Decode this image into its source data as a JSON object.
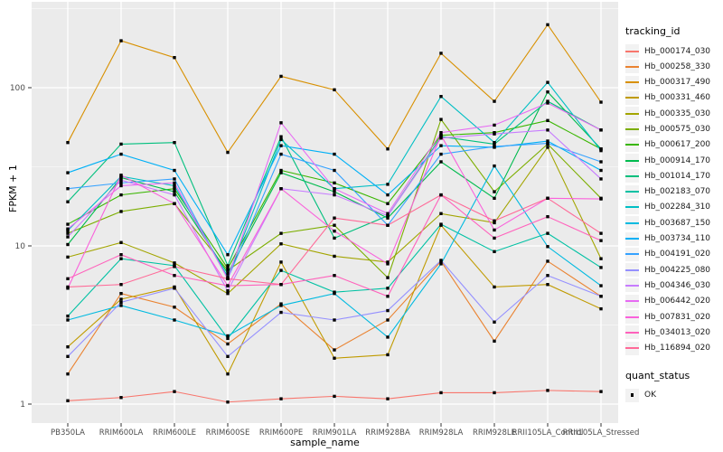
{
  "figure": {
    "panel_background": "#EBEBEB",
    "gridline_color": "#FFFFFF",
    "tick_color": "#333333",
    "tick_label_color": "#4D4D4D",
    "point_color": "#000000",
    "point_shape": "square"
  },
  "chart_data": {
    "type": "line",
    "title": "",
    "xlabel": "sample_name",
    "ylabel": "FPKM + 1",
    "y_scale": "log10",
    "y_ticks": [
      1,
      10,
      100
    ],
    "y_tick_labels": [
      "1",
      "10",
      "100"
    ],
    "y_minor_ticks": [
      3.1623,
      31.623,
      316.23
    ],
    "ylim": [
      1,
      350
    ],
    "grid": true,
    "legend_position": "right",
    "legend_title": "tracking_id",
    "categories": [
      "PB350LA",
      "RRIM600LA",
      "RRIM600LE",
      "RRIM600SE",
      "RRIM600PE",
      "RRIM901LA",
      "RRIM928BA",
      "RRIM928LA",
      "RRIM928LE",
      "RRII105LA_Control",
      "RRII105LA_Stressed"
    ],
    "series": [
      {
        "name": "Hb_000174_030",
        "color": "#F8766D",
        "values": [
          1.05,
          1.1,
          1.2,
          1.03,
          1.08,
          1.12,
          1.08,
          1.18,
          1.18,
          1.22,
          1.2
        ]
      },
      {
        "name": "Hb_000258_330",
        "color": "#EA8331",
        "values": [
          1.55,
          5.0,
          4.1,
          2.4,
          4.3,
          2.2,
          3.4,
          8.0,
          2.5,
          8.0,
          4.8
        ]
      },
      {
        "name": "Hb_000317_490",
        "color": "#D89000",
        "values": [
          45,
          198,
          155,
          39,
          118,
          97,
          41,
          165,
          82,
          250,
          81
        ]
      },
      {
        "name": "Hb_000331_460",
        "color": "#C09B00",
        "values": [
          2.3,
          4.6,
          5.5,
          1.55,
          7.9,
          1.95,
          2.05,
          13.5,
          5.5,
          5.7,
          4.0
        ]
      },
      {
        "name": "Hb_000335_030",
        "color": "#A3A500",
        "values": [
          8.5,
          10.5,
          7.8,
          5.0,
          10.3,
          8.6,
          7.9,
          16,
          14,
          42,
          8.3
        ]
      },
      {
        "name": "Hb_000575_030",
        "color": "#7CAE00",
        "values": [
          12,
          16.5,
          18.5,
          7.0,
          12,
          13.5,
          6.3,
          63,
          22,
          44,
          20
        ]
      },
      {
        "name": "Hb_000617_200",
        "color": "#39B600",
        "values": [
          13.7,
          21,
          23,
          7.2,
          30,
          25,
          18.5,
          50,
          52,
          62,
          41
        ]
      },
      {
        "name": "Hb_000914_170",
        "color": "#00BB4E",
        "values": [
          10.2,
          27,
          22,
          6.7,
          29,
          22,
          15,
          34,
          20,
          94,
          41
        ]
      },
      {
        "name": "Hb_001014_170",
        "color": "#00BF7D",
        "values": [
          19,
          44,
          45,
          7.5,
          49,
          11.2,
          15.5,
          49,
          44,
          82,
          54
        ]
      },
      {
        "name": "Hb_002183_070",
        "color": "#00C1A3",
        "values": [
          3.6,
          8.3,
          7.5,
          2.6,
          7.0,
          5.1,
          5.4,
          13.7,
          9.2,
          12,
          7.3
        ]
      },
      {
        "name": "Hb_002284_310",
        "color": "#00BFC4",
        "values": [
          12.5,
          27.5,
          24,
          6.4,
          47,
          23,
          24.5,
          88,
          45,
          108,
          40
        ]
      },
      {
        "name": "Hb_003687_150",
        "color": "#00BAE0",
        "values": [
          3.4,
          4.2,
          3.4,
          2.7,
          4.2,
          5.0,
          2.65,
          7.7,
          32,
          9.9,
          5.6
        ]
      },
      {
        "name": "Hb_003734_110",
        "color": "#00B0F6",
        "values": [
          29,
          38,
          30,
          8.8,
          43,
          38,
          21,
          43,
          42,
          46,
          30
        ]
      },
      {
        "name": "Hb_004191_020",
        "color": "#35A2FF",
        "values": [
          23,
          25,
          26.5,
          6.2,
          38,
          30,
          13.5,
          38,
          42.5,
          44.5,
          34
        ]
      },
      {
        "name": "Hb_004225_080",
        "color": "#9590FF",
        "values": [
          2.0,
          4.4,
          5.4,
          2.0,
          3.8,
          3.4,
          3.9,
          8.1,
          3.3,
          6.5,
          4.8
        ]
      },
      {
        "name": "Hb_004346_030",
        "color": "#C77CFF",
        "values": [
          11.4,
          26,
          21,
          5.2,
          23,
          21,
          15.5,
          48,
          51,
          54,
          26.5
        ]
      },
      {
        "name": "Hb_006442_020",
        "color": "#E76BF3",
        "values": [
          12.8,
          24,
          25,
          6.2,
          60,
          23,
          16,
          52,
          58,
          80,
          54
        ]
      },
      {
        "name": "Hb_007831_020",
        "color": "#FA62DB",
        "values": [
          5.4,
          28,
          18.5,
          5.6,
          23,
          12.4,
          7.7,
          50,
          12.6,
          20,
          19.8
        ]
      },
      {
        "name": "Hb_034013_020",
        "color": "#FF62BC",
        "values": [
          6.2,
          8.8,
          6.5,
          5.6,
          5.7,
          6.5,
          4.8,
          21,
          11.2,
          15.3,
          10.8
        ]
      },
      {
        "name": "Hb_116894_020",
        "color": "#FF6A98",
        "values": [
          5.5,
          5.7,
          7.4,
          6.2,
          5.7,
          15,
          13.5,
          21,
          14.4,
          20,
          12
        ]
      }
    ],
    "quant_legend": {
      "title": "quant_status",
      "items": [
        {
          "label": "OK",
          "marker": "black-square"
        }
      ]
    }
  }
}
